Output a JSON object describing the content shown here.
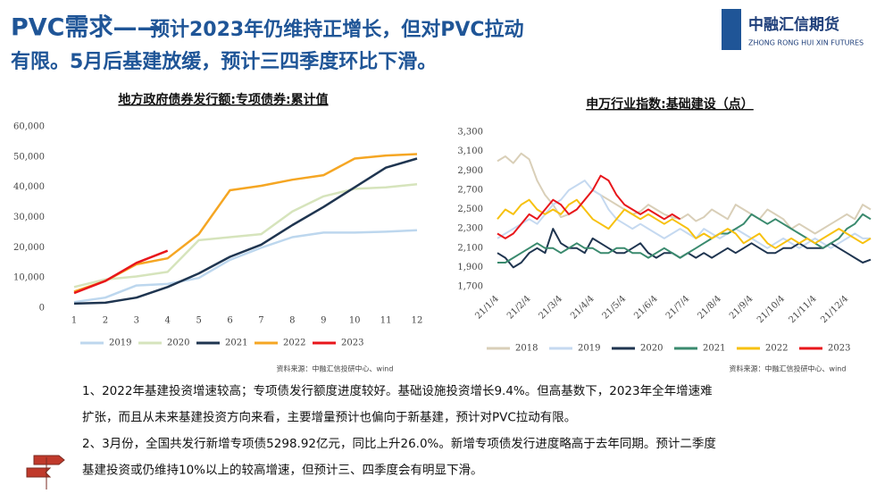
{
  "header": {
    "title_main": "PVC需求——",
    "title_rest": "预计2023年仍维持正增长，但对PVC拉动",
    "title_line2": "有限。5月后基建放缓，预计三四季度环比下滑。",
    "logo_cn": "中融汇信期货",
    "logo_en": "ZHONG RONG HUI XIN FUTURES"
  },
  "chart_data": [
    {
      "type": "line",
      "title": "地方政府债券发行额:专项债券:累计值",
      "source": "资料来源：中融汇信投研中心、wind",
      "categories": [
        "1",
        "2",
        "3",
        "4",
        "5",
        "6",
        "7",
        "8",
        "9",
        "10",
        "11",
        "12"
      ],
      "ylim": [
        0,
        60000
      ],
      "yticks": [
        0,
        {
          "value": 10000,
          "label": "10,000"
        },
        {
          "value": 20000,
          "label": "20,000"
        },
        {
          "value": 30000,
          "label": "30,000"
        },
        {
          "value": 40000,
          "label": "40,000"
        },
        {
          "value": 50000,
          "label": "50,000"
        },
        {
          "value": 60000,
          "label": "60,000"
        }
      ],
      "series": [
        {
          "name": "2019",
          "color": "#bdd7ee",
          "values": [
            2000,
            3500,
            7500,
            8000,
            10000,
            16000,
            20000,
            23500,
            25000,
            25000,
            25300,
            25800
          ]
        },
        {
          "name": "2020",
          "color": "#d6e4bc",
          "values": [
            7000,
            9500,
            10500,
            12000,
            22500,
            23500,
            24500,
            32000,
            37000,
            39500,
            40000,
            41000
          ]
        },
        {
          "name": "2021",
          "color": "#1f3550",
          "values": [
            1500,
            1800,
            3500,
            7000,
            11500,
            17000,
            21000,
            27500,
            33500,
            40000,
            46500,
            49500
          ]
        },
        {
          "name": "2022",
          "color": "#f5a623",
          "values": [
            5500,
            9000,
            14500,
            16500,
            24500,
            39000,
            40500,
            42500,
            44000,
            49500,
            50500,
            51000
          ]
        },
        {
          "name": "2023",
          "color": "#e8161b",
          "values": [
            5000,
            9000,
            15000,
            19000,
            null,
            null,
            null,
            null,
            null,
            null,
            null,
            null
          ]
        }
      ]
    },
    {
      "type": "line",
      "title": "申万行业指数:基础建设（点）",
      "source": "资料来源：中融汇信投研中心、wind",
      "categories": [
        "21/1/4",
        null,
        null,
        null,
        "21/2/4",
        null,
        null,
        null,
        "21/3/4",
        null,
        null,
        null,
        "21/4/4",
        null,
        null,
        null,
        "21/5/4",
        null,
        null,
        null,
        "21/6/4",
        null,
        null,
        null,
        "21/7/4",
        null,
        null,
        null,
        "21/8/4",
        null,
        null,
        null,
        "21/9/4",
        null,
        null,
        null,
        "21/10/4",
        null,
        null,
        null,
        "21/11/4",
        null,
        null,
        null,
        "21/12/4",
        null,
        null,
        null
      ],
      "ylim": [
        1700,
        3300
      ],
      "yticks": [
        {
          "value": 1700,
          "label": "1,700"
        },
        {
          "value": 1900,
          "label": "1,900"
        },
        {
          "value": 2100,
          "label": "2,100"
        },
        {
          "value": 2300,
          "label": "2,300"
        },
        {
          "value": 2500,
          "label": "2,500"
        },
        {
          "value": 2700,
          "label": "2,700"
        },
        {
          "value": 2900,
          "label": "2,900"
        },
        {
          "value": 3100,
          "label": "3,100"
        },
        {
          "value": 3300,
          "label": "3,300"
        }
      ],
      "series": [
        {
          "name": "2018",
          "color": "#d9cfb8",
          "values": [
            3000,
            3050,
            2980,
            3080,
            3020,
            2800,
            2650,
            2550,
            2420,
            2450,
            2500,
            2600,
            2700,
            2650,
            2600,
            2550,
            2500,
            2450,
            2480,
            2550,
            2500,
            2450,
            2420,
            2400,
            2450,
            2380,
            2420,
            2500,
            2450,
            2400,
            2550,
            2500,
            2450,
            2400,
            2500,
            2450,
            2400,
            2300,
            2350,
            2300,
            2250,
            2300,
            2350,
            2400,
            2450,
            2400,
            2550,
            2500
          ]
        },
        {
          "name": "2019",
          "color": "#c5d9f0",
          "values": [
            2200,
            2250,
            2300,
            2350,
            2400,
            2350,
            2450,
            2550,
            2600,
            2700,
            2750,
            2800,
            2700,
            2650,
            2500,
            2400,
            2350,
            2300,
            2350,
            2300,
            2250,
            2200,
            2250,
            2300,
            2250,
            2200,
            2300,
            2250,
            2200,
            2250,
            2300,
            2250,
            2200,
            2150,
            2100,
            2150,
            2200,
            2150,
            2100,
            2150,
            2200,
            2150,
            2100,
            2150,
            2200,
            2250,
            2200,
            2200
          ]
        },
        {
          "name": "2020",
          "color": "#1f3550",
          "values": [
            2050,
            2000,
            1900,
            1950,
            2050,
            2100,
            2050,
            2300,
            2150,
            2100,
            2100,
            2050,
            2200,
            2150,
            2100,
            2050,
            2050,
            2100,
            2150,
            2050,
            2000,
            2050,
            2050,
            2000,
            2050,
            2000,
            2050,
            2000,
            2050,
            2100,
            2050,
            2100,
            2150,
            2100,
            2050,
            2050,
            2100,
            2100,
            2150,
            2100,
            2100,
            2100,
            2150,
            2100,
            2050,
            2000,
            1950,
            1980
          ]
        },
        {
          "name": "2021",
          "color": "#3a8a6e",
          "values": [
            1950,
            1950,
            2000,
            2050,
            2100,
            2150,
            2100,
            2100,
            2050,
            2100,
            2150,
            2100,
            2100,
            2050,
            2050,
            2100,
            2100,
            2050,
            2050,
            2000,
            2050,
            2100,
            2050,
            2000,
            2050,
            2100,
            2150,
            2200,
            2250,
            2250,
            2300,
            2350,
            2450,
            2400,
            2350,
            2400,
            2350,
            2300,
            2250,
            2200,
            2150,
            2100,
            2150,
            2200,
            2300,
            2350,
            2450,
            2400
          ]
        },
        {
          "name": "2022",
          "color": "#f7c10f",
          "values": [
            2400,
            2500,
            2450,
            2550,
            2600,
            2500,
            2450,
            2500,
            2450,
            2550,
            2600,
            2500,
            2400,
            2350,
            2300,
            2400,
            2500,
            2450,
            2400,
            2450,
            2400,
            2350,
            2400,
            2350,
            2300,
            2200,
            2250,
            2200,
            2250,
            2300,
            2250,
            2150,
            2200,
            2250,
            2150,
            2100,
            2150,
            2200,
            2150,
            2200,
            2150,
            2200,
            2250,
            2300,
            2250,
            2200,
            2150,
            2200
          ]
        },
        {
          "name": "2023",
          "color": "#e8161b",
          "values": [
            2250,
            2200,
            2250,
            2350,
            2450,
            2400,
            2500,
            2600,
            2550,
            2450,
            2500,
            2600,
            2700,
            2850,
            2800,
            2650,
            2550,
            2500,
            2450,
            2500,
            2450,
            2400,
            2450,
            2400,
            null,
            null,
            null,
            null,
            null,
            null,
            null,
            null,
            null,
            null,
            null,
            null,
            null,
            null,
            null,
            null,
            null,
            null,
            null,
            null,
            null,
            null,
            null,
            null
          ]
        }
      ]
    }
  ],
  "notes": [
    [
      "1、2022年基建投资增速较高；专项债发行额度进度较好。基础设施投资增长9.4%。但高基数下，2023年全年增速难",
      "扩张，而且从未来基建投资方向来看，主要增量预计也偏向于新基建，预计对PVC拉动有限。"
    ],
    [
      "2、3月份，全国共发行新增专项债5298.92亿元，同比上升26.0%。新增专项债发行进度略高于去年同期。预计二季度",
      "基建投资或仍维持10%以上的较高增速，但预计三、四季度会有明显下滑。"
    ]
  ]
}
